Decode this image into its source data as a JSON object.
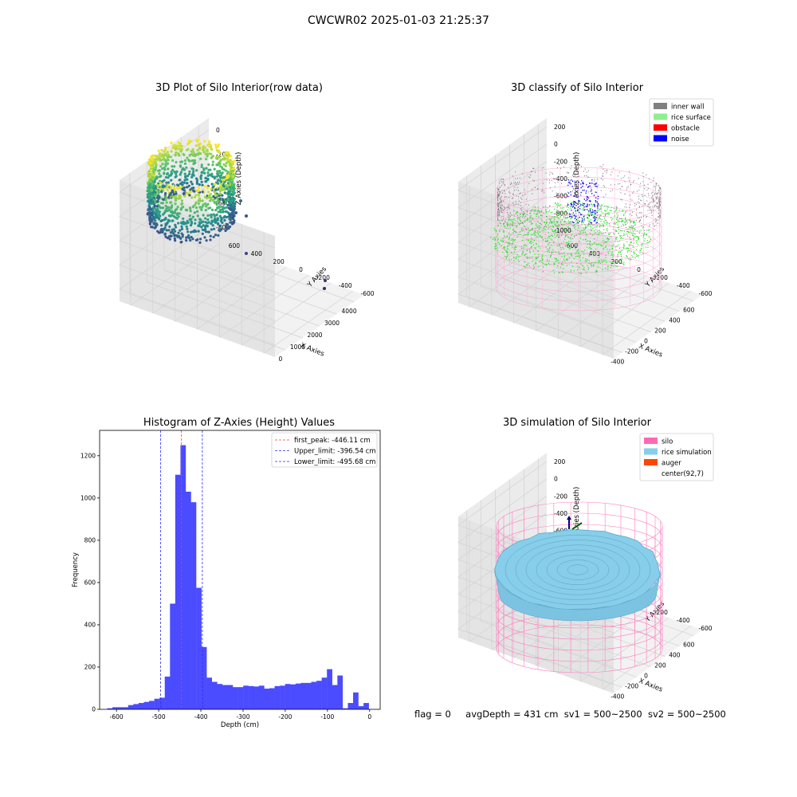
{
  "suptitle": "CWCWR02 2025-01-03 21:25:37",
  "status": {
    "flag": "flag = 0",
    "avg_depth": "avgDepth = 431 cm",
    "sv1": "sv1 = 500~2500",
    "sv2": "sv2 = 500~2500"
  },
  "chart_data": [
    {
      "type": "scatter",
      "title": "3D Plot of Silo Interior(row data)",
      "xlabel": "X Axies",
      "ylabel": "Y Axies",
      "zlabel": "Z Axies (Depth)",
      "x_ticks": [
        0,
        1000,
        2000,
        3000,
        4000
      ],
      "y_ticks": [
        -600,
        -400,
        -200,
        0,
        200,
        400,
        600
      ],
      "z_ticks": [
        0,
        -200,
        -400,
        -600,
        -800
      ],
      "colormap": "viridis",
      "description_points": "dense ring of points near x≈0 (depth -200 to -700) plus a few outliers near x≈4000"
    },
    {
      "type": "scatter",
      "title": "3D classify of Silo Interior",
      "xlabel": "X Axies",
      "ylabel": "Y Axies",
      "zlabel": "Z Axies (Depth)",
      "x_ticks": [
        -400,
        -200,
        0,
        200,
        400,
        600
      ],
      "y_ticks": [
        -600,
        -400,
        -200,
        0,
        200,
        400,
        600
      ],
      "z_ticks": [
        200,
        0,
        -200,
        -400,
        -600,
        -800,
        -1000
      ],
      "legend": [
        {
          "label": "inner wall",
          "color": "#808080"
        },
        {
          "label": "rice surface",
          "color": "#90ee90"
        },
        {
          "label": "obstacle",
          "color": "#ff0000"
        },
        {
          "label": "noise",
          "color": "#0000ff"
        }
      ],
      "legend_position": "top-right"
    },
    {
      "type": "bar",
      "title": "Histogram of Z-Axies (Height) Values",
      "xlabel": "Depth (cm)",
      "ylabel": "Frequency",
      "xlim": [
        -640,
        25
      ],
      "ylim": [
        0,
        1320
      ],
      "x_ticks": [
        -600,
        -500,
        -400,
        -300,
        -200,
        -100,
        0
      ],
      "y_ticks": [
        0,
        200,
        400,
        600,
        800,
        1000,
        1200
      ],
      "bar_color": "#4b4bff",
      "bin_start": -622,
      "bin_width": 12.4,
      "values": [
        5,
        10,
        10,
        10,
        20,
        25,
        30,
        35,
        40,
        50,
        55,
        155,
        500,
        1110,
        1250,
        1030,
        980,
        575,
        295,
        150,
        130,
        120,
        115,
        115,
        105,
        105,
        112,
        110,
        108,
        112,
        98,
        100,
        110,
        112,
        120,
        118,
        122,
        125,
        125,
        130,
        135,
        150,
        190,
        115,
        160,
        5,
        30,
        80,
        15,
        30
      ],
      "vlines": [
        {
          "label": "first_peak: -446.11 cm",
          "x": -446.11,
          "color": "#ff3b3b"
        },
        {
          "label": "Upper_limit: -396.54 cm",
          "x": -396.54,
          "color": "#2a2aff"
        },
        {
          "label": "Lower_limit: -495.68 cm",
          "x": -495.68,
          "color": "#2a2aff"
        }
      ],
      "legend_position": "top-right"
    },
    {
      "type": "surface",
      "title": "3D simulation of Silo Interior",
      "xlabel": "X Axies",
      "ylabel": "Y Axies",
      "zlabel": "Z Axies (Depth)",
      "x_ticks": [
        -400,
        -200,
        0,
        200,
        400,
        600
      ],
      "y_ticks": [
        -600,
        -400,
        -200,
        0,
        200,
        400,
        600
      ],
      "z_ticks": [
        200,
        0,
        -200,
        -400,
        -600,
        -800,
        -1000
      ],
      "legend": [
        {
          "label": "silo",
          "color": "#ff69b4"
        },
        {
          "label": "rice simulation",
          "color": "#87ceeb"
        },
        {
          "label": "auger",
          "color": "#ff4500"
        },
        {
          "label": "center(92,7)",
          "color": "#ffffff"
        }
      ],
      "legend_position": "top-right"
    }
  ]
}
